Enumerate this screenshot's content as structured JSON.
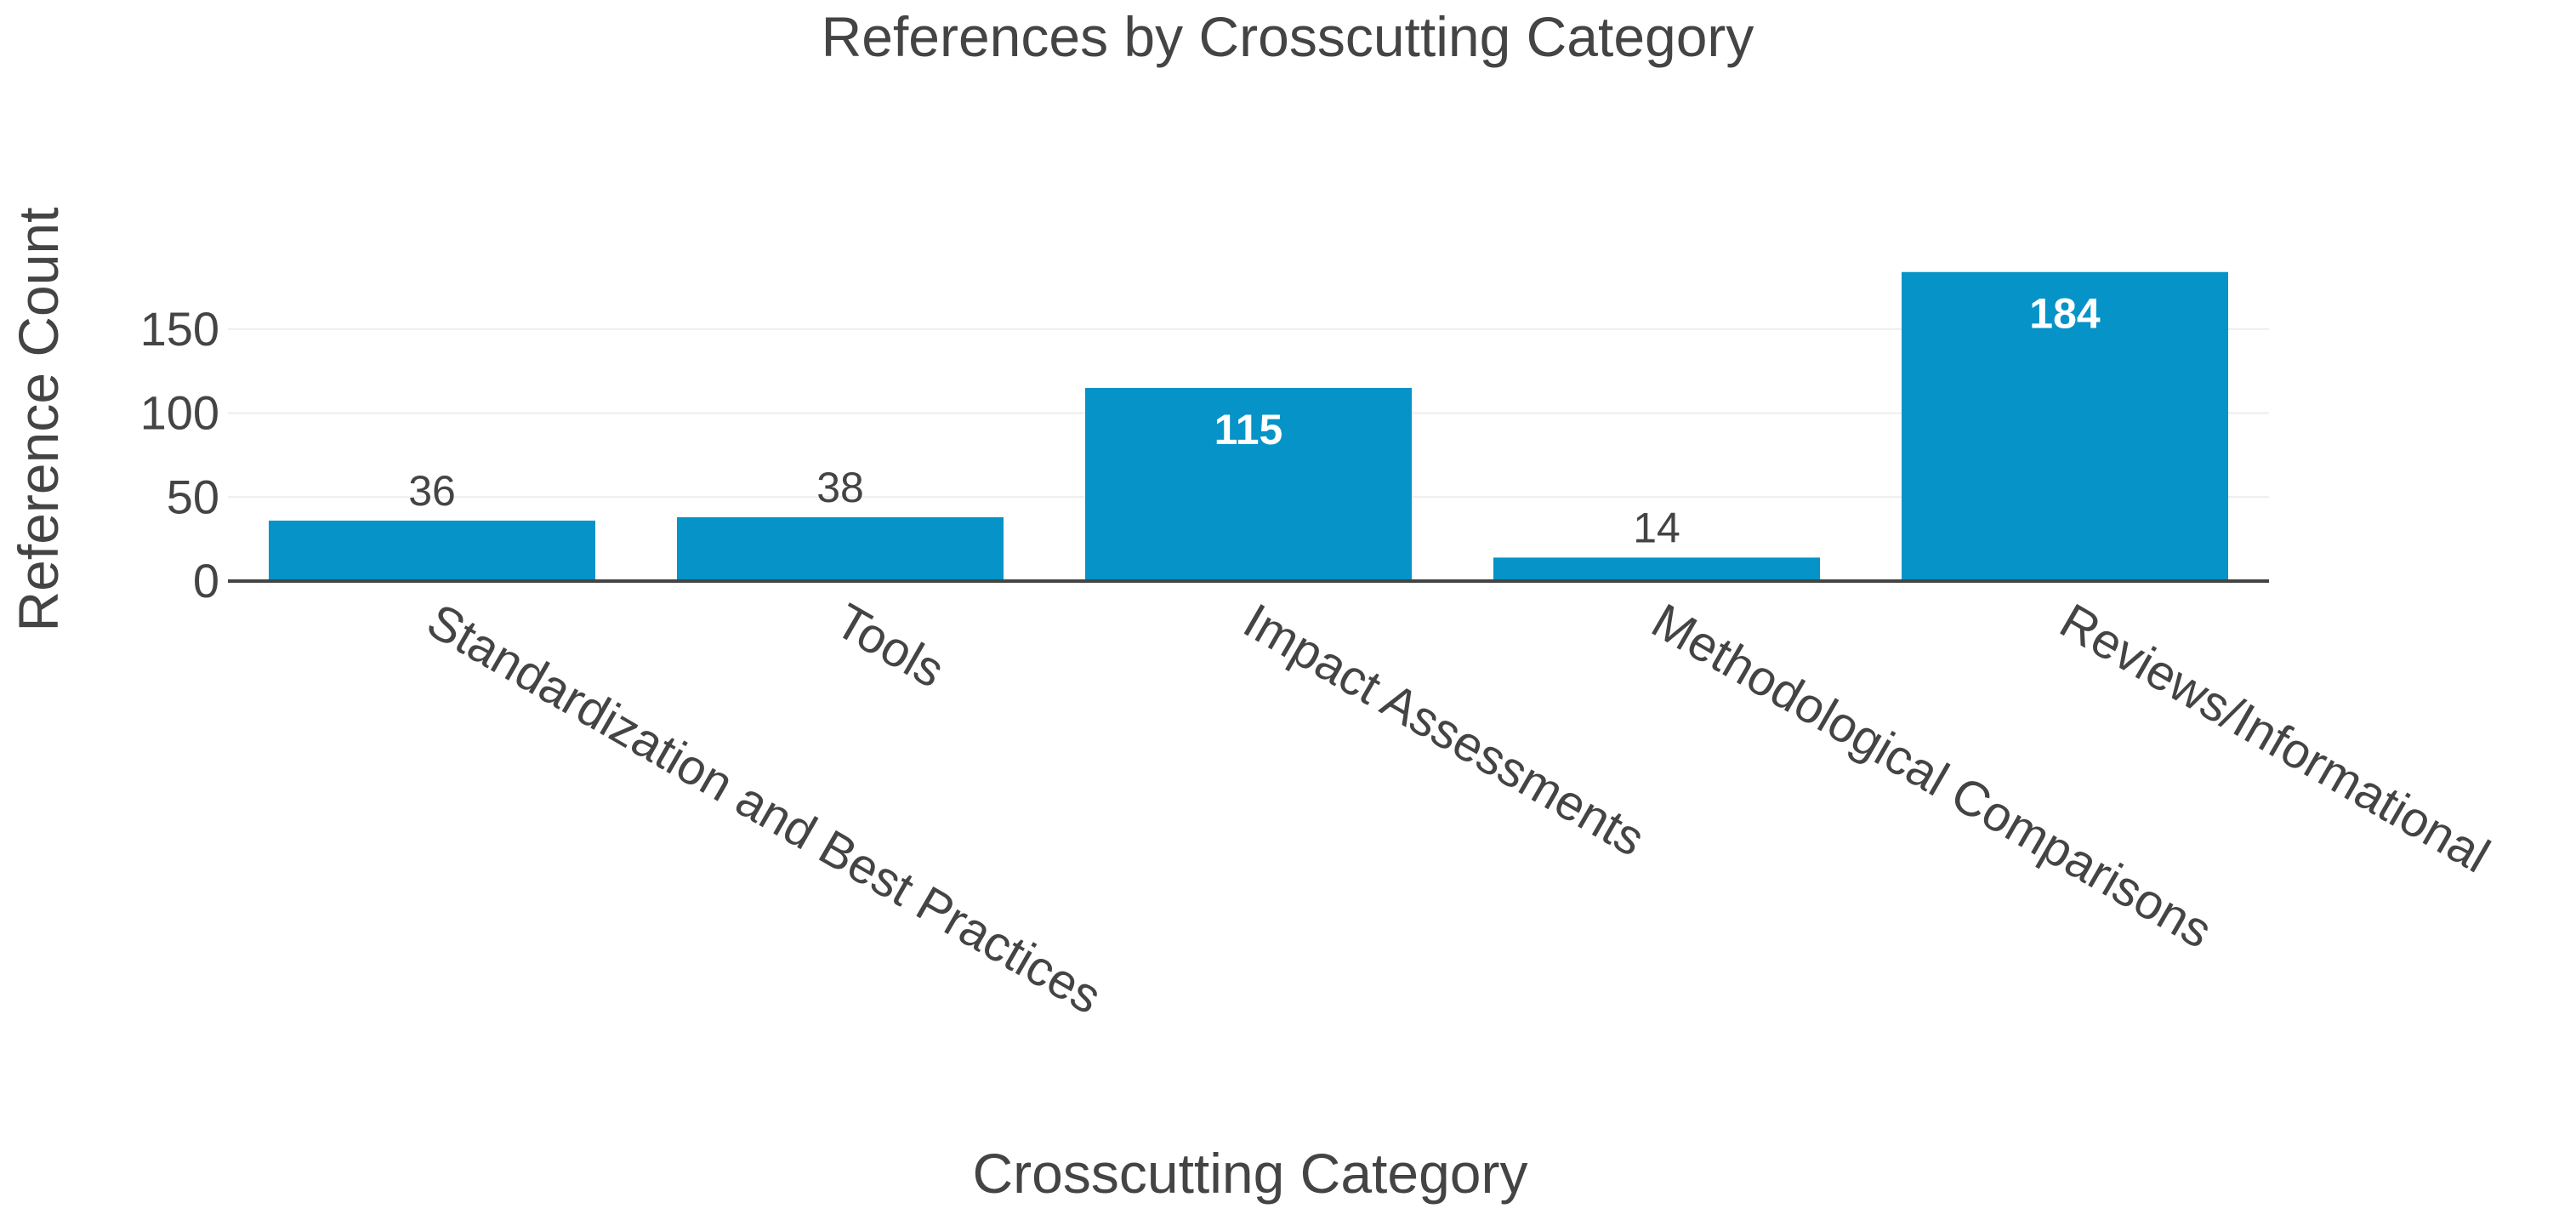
{
  "chart_data": {
    "type": "bar",
    "title": "References by Crosscutting Category",
    "xlabel": "Crosscutting Category",
    "ylabel": "Reference Count",
    "categories": [
      "Standardization and Best Practices",
      "Tools",
      "Impact Assessments",
      "Methodological Comparisons",
      "Reviews/Informational"
    ],
    "values": [
      36,
      38,
      115,
      14,
      184
    ],
    "data_labels": [
      "36",
      "38",
      "115",
      "14",
      "184"
    ],
    "yticks": [
      0,
      50,
      100,
      150
    ],
    "ytick_labels": [
      "0",
      "50",
      "100",
      "150"
    ],
    "ylim": [
      0,
      194
    ],
    "grid": true,
    "legend": "none",
    "colors": {
      "bar": "#0593c8",
      "text": "#444444",
      "grid": "#eeeeee",
      "axis": "#444444",
      "label_inside": "#ffffff"
    }
  }
}
